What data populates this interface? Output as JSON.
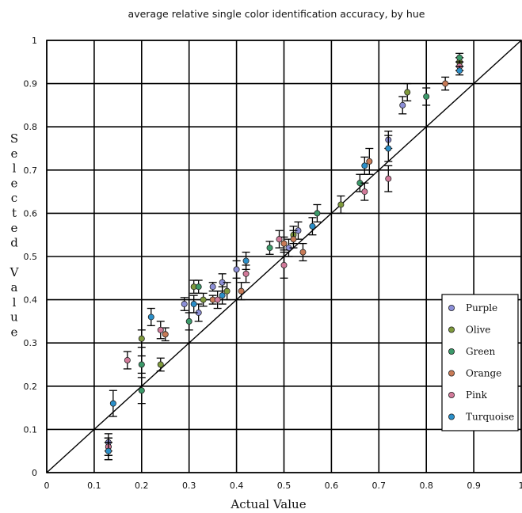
{
  "chart_data": {
    "type": "scatter",
    "title": "average relative single color identification accuracy, by hue",
    "xlabel": "Actual Value",
    "ylabel": "Selected Value",
    "xlim": [
      0,
      1
    ],
    "ylim": [
      0,
      1
    ],
    "x_ticks": [
      "0",
      "0.1",
      "0.2",
      "0.3",
      "0.4",
      "0.5",
      "0.6",
      "0.7",
      "0.8",
      "0.9",
      "1"
    ],
    "y_ticks": [
      "0",
      "0.1",
      "0.2",
      "0.3",
      "0.4",
      "0.5",
      "0.6",
      "0.7",
      "0.8",
      "0.9",
      "1"
    ],
    "grid": true,
    "reference_line": "y = x",
    "legend_position": "right",
    "series": [
      {
        "name": "Purple",
        "color": "#8c8fd8",
        "points": [
          [
            0.13,
            0.07,
            0.02
          ],
          [
            0.29,
            0.39,
            0.015
          ],
          [
            0.32,
            0.37,
            0.02
          ],
          [
            0.35,
            0.43,
            0.01
          ],
          [
            0.37,
            0.44,
            0.02
          ],
          [
            0.4,
            0.47,
            0.02
          ],
          [
            0.51,
            0.52,
            0.02
          ],
          [
            0.53,
            0.56,
            0.02
          ],
          [
            0.75,
            0.85,
            0.02
          ],
          [
            0.72,
            0.77,
            0.02
          ],
          [
            0.87,
            0.95,
            0.01
          ]
        ]
      },
      {
        "name": "Olive",
        "color": "#7f9a3c",
        "points": [
          [
            0.13,
            0.06,
            0.02
          ],
          [
            0.2,
            0.31,
            0.02
          ],
          [
            0.24,
            0.25,
            0.015
          ],
          [
            0.31,
            0.43,
            0.015
          ],
          [
            0.33,
            0.4,
            0.015
          ],
          [
            0.38,
            0.42,
            0.02
          ],
          [
            0.52,
            0.55,
            0.02
          ],
          [
            0.62,
            0.62,
            0.02
          ],
          [
            0.76,
            0.88,
            0.02
          ],
          [
            0.87,
            0.95,
            0.01
          ]
        ]
      },
      {
        "name": "Green",
        "color": "#3c9a6a",
        "points": [
          [
            0.13,
            0.05,
            0.02
          ],
          [
            0.2,
            0.19,
            0.03
          ],
          [
            0.2,
            0.25,
            0.02
          ],
          [
            0.3,
            0.35,
            0.02
          ],
          [
            0.32,
            0.43,
            0.015
          ],
          [
            0.47,
            0.52,
            0.015
          ],
          [
            0.57,
            0.6,
            0.02
          ],
          [
            0.66,
            0.67,
            0.02
          ],
          [
            0.8,
            0.87,
            0.02
          ],
          [
            0.87,
            0.96,
            0.01
          ]
        ]
      },
      {
        "name": "Orange",
        "color": "#c87a56",
        "points": [
          [
            0.13,
            0.06,
            0.02
          ],
          [
            0.25,
            0.32,
            0.015
          ],
          [
            0.35,
            0.4,
            0.01
          ],
          [
            0.41,
            0.42,
            0.02
          ],
          [
            0.5,
            0.53,
            0.015
          ],
          [
            0.52,
            0.54,
            0.02
          ],
          [
            0.54,
            0.51,
            0.02
          ],
          [
            0.68,
            0.72,
            0.03
          ],
          [
            0.84,
            0.9,
            0.015
          ],
          [
            0.87,
            0.94,
            0.01
          ]
        ]
      },
      {
        "name": "Pink",
        "color": "#d27a9a",
        "points": [
          [
            0.13,
            0.06,
            0.02
          ],
          [
            0.17,
            0.26,
            0.02
          ],
          [
            0.24,
            0.33,
            0.02
          ],
          [
            0.36,
            0.4,
            0.02
          ],
          [
            0.42,
            0.46,
            0.02
          ],
          [
            0.49,
            0.54,
            0.02
          ],
          [
            0.5,
            0.48,
            0.03
          ],
          [
            0.67,
            0.65,
            0.02
          ],
          [
            0.72,
            0.68,
            0.03
          ],
          [
            0.87,
            0.94,
            0.01
          ]
        ]
      },
      {
        "name": "Turquoise",
        "color": "#2a8fc9",
        "points": [
          [
            0.13,
            0.05,
            0.02
          ],
          [
            0.14,
            0.16,
            0.03
          ],
          [
            0.22,
            0.36,
            0.02
          ],
          [
            0.31,
            0.39,
            0.02
          ],
          [
            0.37,
            0.41,
            0.02
          ],
          [
            0.42,
            0.49,
            0.02
          ],
          [
            0.56,
            0.57,
            0.02
          ],
          [
            0.67,
            0.71,
            0.02
          ],
          [
            0.72,
            0.75,
            0.03
          ],
          [
            0.87,
            0.93,
            0.01
          ]
        ]
      }
    ]
  }
}
